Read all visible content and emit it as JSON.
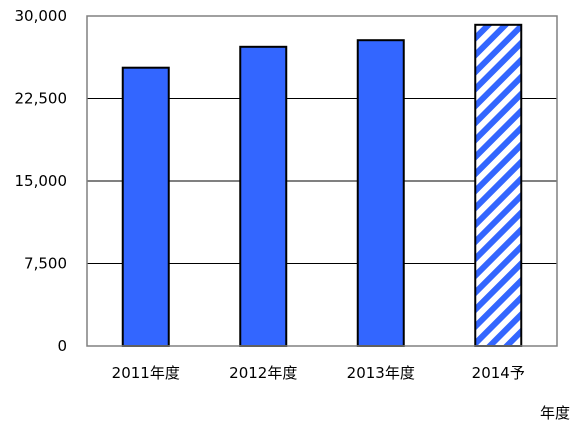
{
  "chart_data": {
    "type": "bar",
    "title": "",
    "xlabel": "年度",
    "ylabel": "",
    "categories": [
      "2011年度",
      "2012年度",
      "2013年度",
      "2014予"
    ],
    "values": [
      25300,
      27200,
      27800,
      29200
    ],
    "estimated": [
      false,
      false,
      false,
      true
    ],
    "ylim": [
      0,
      30000
    ],
    "yticks": [
      0,
      7500,
      15000,
      22500,
      30000
    ],
    "ytick_labels": [
      "0",
      "7,500",
      "15,000",
      "22,500",
      "30,000"
    ],
    "grid": true,
    "legend": "none",
    "colors": {
      "bar": "#3366ff",
      "hatch_stripe": "#3366ff",
      "hatch_background": "#ffffff",
      "bar_border": "#000000",
      "gridline": "#000000",
      "plot_border": "#808080"
    }
  }
}
